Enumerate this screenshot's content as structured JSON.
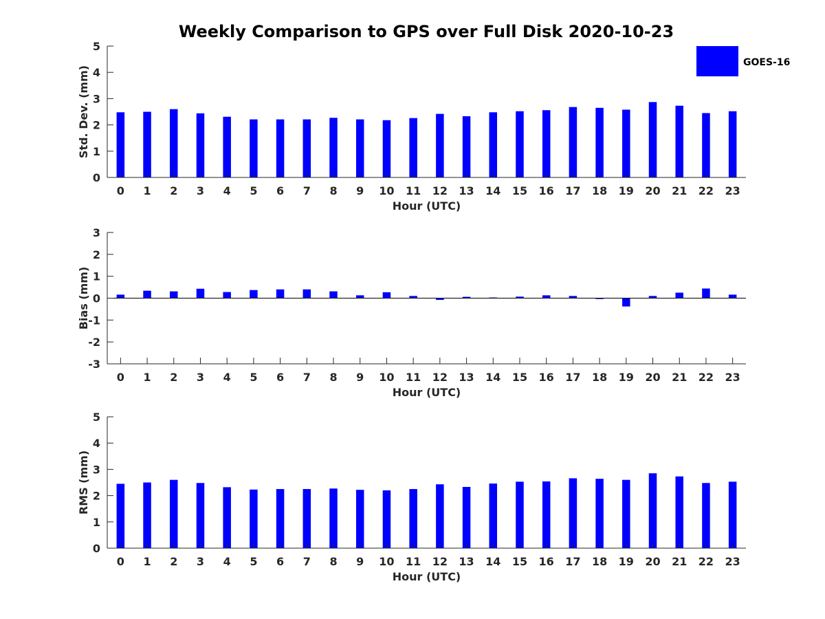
{
  "title": "Weekly Comparison to GPS over Full Disk 2020-10-23",
  "legend": {
    "label": "GOES-16",
    "placement": "top-right"
  },
  "colors": {
    "bar": "#0000ff",
    "axis": "#262626",
    "title": "#000000"
  },
  "chart_data": [
    {
      "type": "bar",
      "title": "Weekly Comparison to GPS over Full Disk 2020-10-23",
      "xlabel": "Hour (UTC)",
      "ylabel": "Std. Dev. (mm)",
      "ylim": [
        0,
        5
      ],
      "yticks": [
        "0",
        "1",
        "2",
        "3",
        "4",
        "5"
      ],
      "categories": [
        "0",
        "1",
        "2",
        "3",
        "4",
        "5",
        "6",
        "7",
        "8",
        "9",
        "10",
        "11",
        "12",
        "13",
        "14",
        "15",
        "16",
        "17",
        "18",
        "19",
        "20",
        "21",
        "22",
        "23"
      ],
      "series": [
        {
          "name": "GOES-16",
          "values": [
            2.48,
            2.5,
            2.6,
            2.44,
            2.31,
            2.21,
            2.21,
            2.21,
            2.27,
            2.21,
            2.18,
            2.26,
            2.42,
            2.33,
            2.48,
            2.52,
            2.56,
            2.68,
            2.65,
            2.58,
            2.87,
            2.73,
            2.45,
            2.52
          ]
        }
      ]
    },
    {
      "type": "bar",
      "xlabel": "Hour (UTC)",
      "ylabel": "Bias (mm)",
      "ylim": [
        -3,
        3
      ],
      "yticks": [
        "-3",
        "-2",
        "-1",
        "0",
        "1",
        "2",
        "3"
      ],
      "categories": [
        "0",
        "1",
        "2",
        "3",
        "4",
        "5",
        "6",
        "7",
        "8",
        "9",
        "10",
        "11",
        "12",
        "13",
        "14",
        "15",
        "16",
        "17",
        "18",
        "19",
        "20",
        "21",
        "22",
        "23"
      ],
      "series": [
        {
          "name": "GOES-16",
          "values": [
            0.16,
            0.34,
            0.31,
            0.43,
            0.28,
            0.37,
            0.4,
            0.4,
            0.31,
            0.13,
            0.27,
            0.1,
            -0.08,
            0.06,
            0.03,
            0.07,
            0.13,
            0.1,
            -0.04,
            -0.38,
            0.1,
            0.25,
            0.44,
            0.16
          ]
        }
      ]
    },
    {
      "type": "bar",
      "xlabel": "Hour (UTC)",
      "ylabel": "RMS (mm)",
      "ylim": [
        0,
        5
      ],
      "yticks": [
        "0",
        "1",
        "2",
        "3",
        "4",
        "5"
      ],
      "categories": [
        "0",
        "1",
        "2",
        "3",
        "4",
        "5",
        "6",
        "7",
        "8",
        "9",
        "10",
        "11",
        "12",
        "13",
        "14",
        "15",
        "16",
        "17",
        "18",
        "19",
        "20",
        "21",
        "22",
        "23"
      ],
      "series": [
        {
          "name": "GOES-16",
          "values": [
            2.45,
            2.5,
            2.6,
            2.48,
            2.32,
            2.23,
            2.25,
            2.25,
            2.27,
            2.22,
            2.2,
            2.25,
            2.43,
            2.33,
            2.46,
            2.53,
            2.54,
            2.66,
            2.64,
            2.6,
            2.85,
            2.73,
            2.48,
            2.53
          ]
        }
      ]
    }
  ]
}
